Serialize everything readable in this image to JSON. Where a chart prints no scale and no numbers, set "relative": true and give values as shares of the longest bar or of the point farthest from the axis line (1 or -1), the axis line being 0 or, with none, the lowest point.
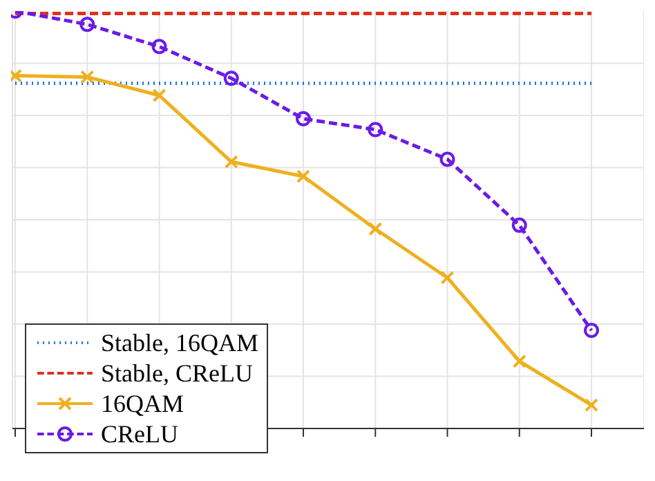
{
  "chart_data": {
    "type": "line",
    "relative": true,
    "grid": true,
    "legend": "bottom left",
    "categories": [
      null,
      null,
      null,
      null,
      null,
      null,
      null,
      null,
      null
    ],
    "series": [
      {
        "name": "Stable, 16QAM",
        "color": "#1f77e8",
        "line_style": "dotted",
        "marker": "none",
        "values": [
          0.827,
          0.827,
          0.827,
          0.827,
          0.827,
          0.827,
          0.827,
          0.827,
          0.827
        ]
      },
      {
        "name": "Stable, CReLU",
        "color": "#e0301e",
        "line_style": "dashed",
        "marker": "none",
        "values": [
          0.994,
          0.994,
          0.994,
          0.994,
          0.994,
          0.994,
          0.994,
          0.994,
          0.994
        ]
      },
      {
        "name": "16QAM",
        "color": "#edb120",
        "line_style": "solid",
        "marker": "cross",
        "values": [
          0.845,
          0.842,
          0.798,
          0.639,
          0.604,
          0.478,
          0.361,
          0.161,
          0.056
        ]
      },
      {
        "name": "CReLU",
        "color": "#6a1be6",
        "line_style": "dashed",
        "marker": "circle",
        "values": [
          1,
          0.968,
          0.915,
          0.839,
          0.742,
          0.716,
          0.645,
          0.487,
          0.235
        ]
      }
    ]
  }
}
